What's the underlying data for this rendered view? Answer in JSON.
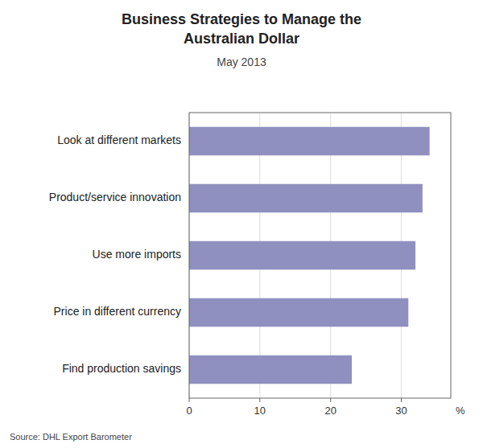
{
  "chart_data": {
    "type": "bar",
    "orientation": "horizontal",
    "title": "Business Strategies to Manage the\nAustralian Dollar",
    "subtitle": "May 2013",
    "categories": [
      "Find production savings",
      "Price in different currency",
      "Use more imports",
      "Product/service innovation",
      "Look at different markets"
    ],
    "values": [
      23,
      31,
      32,
      33,
      34
    ],
    "color": "#9090c0",
    "xlim": [
      0,
      37
    ],
    "xticks": [
      0,
      10,
      20,
      30
    ],
    "xlabel": "%",
    "grid": true,
    "annotations": [
      "Source: DHL Export Barometer"
    ]
  }
}
